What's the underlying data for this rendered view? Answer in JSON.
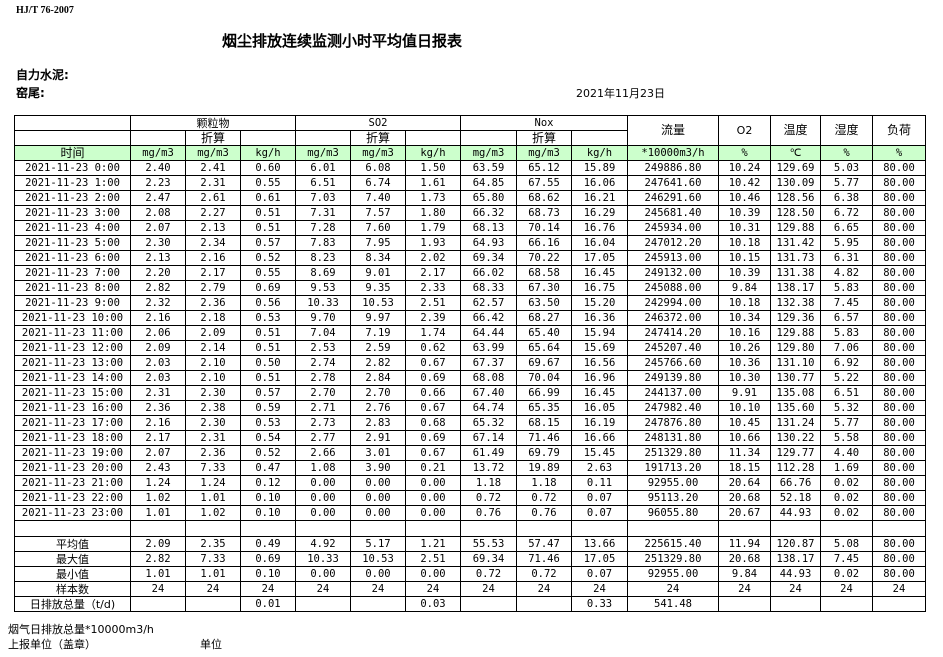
{
  "standard": "HJ/T  76-2007",
  "title": "烟尘排放连续监测小时平均值日报表",
  "company_label": "自力水泥:",
  "kiln_label": "窑尾:",
  "date": "2021年11月23日",
  "header": {
    "particulate": "颗粒物",
    "so2": "SO2",
    "nox": "Nox",
    "converted": "折算",
    "flow": "流量",
    "o2": "O2",
    "temperature": "温度",
    "humidity": "湿度",
    "load": "负荷",
    "time": "时间",
    "units": [
      "mg/m3",
      "mg/m3",
      "kg/h",
      "mg/m3",
      "mg/m3",
      "kg/h",
      "mg/m3",
      "mg/m3",
      "kg/h",
      "*10000m3/h",
      "%",
      "℃",
      "%",
      "%"
    ]
  },
  "rows": [
    [
      "2021-11-23 0:00",
      "2.40",
      "2.41",
      "0.60",
      "6.01",
      "6.08",
      "1.50",
      "63.59",
      "65.12",
      "15.89",
      "249886.80",
      "10.24",
      "129.69",
      "5.03",
      "80.00"
    ],
    [
      "2021-11-23 1:00",
      "2.23",
      "2.31",
      "0.55",
      "6.51",
      "6.74",
      "1.61",
      "64.85",
      "67.55",
      "16.06",
      "247641.60",
      "10.42",
      "130.09",
      "5.77",
      "80.00"
    ],
    [
      "2021-11-23 2:00",
      "2.47",
      "2.61",
      "0.61",
      "7.03",
      "7.40",
      "1.73",
      "65.80",
      "68.62",
      "16.21",
      "246291.60",
      "10.46",
      "128.56",
      "6.38",
      "80.00"
    ],
    [
      "2021-11-23 3:00",
      "2.08",
      "2.27",
      "0.51",
      "7.31",
      "7.57",
      "1.80",
      "66.32",
      "68.73",
      "16.29",
      "245681.40",
      "10.39",
      "128.50",
      "6.72",
      "80.00"
    ],
    [
      "2021-11-23 4:00",
      "2.07",
      "2.13",
      "0.51",
      "7.28",
      "7.60",
      "1.79",
      "68.13",
      "70.14",
      "16.76",
      "245934.00",
      "10.31",
      "129.88",
      "6.65",
      "80.00"
    ],
    [
      "2021-11-23 5:00",
      "2.30",
      "2.34",
      "0.57",
      "7.83",
      "7.95",
      "1.93",
      "64.93",
      "66.16",
      "16.04",
      "247012.20",
      "10.18",
      "131.42",
      "5.95",
      "80.00"
    ],
    [
      "2021-11-23 6:00",
      "2.13",
      "2.16",
      "0.52",
      "8.23",
      "8.34",
      "2.02",
      "69.34",
      "70.22",
      "17.05",
      "245913.00",
      "10.15",
      "131.73",
      "6.31",
      "80.00"
    ],
    [
      "2021-11-23 7:00",
      "2.20",
      "2.17",
      "0.55",
      "8.69",
      "9.01",
      "2.17",
      "66.02",
      "68.58",
      "16.45",
      "249132.00",
      "10.39",
      "131.38",
      "4.82",
      "80.00"
    ],
    [
      "2021-11-23 8:00",
      "2.82",
      "2.79",
      "0.69",
      "9.53",
      "9.35",
      "2.33",
      "68.33",
      "67.30",
      "16.75",
      "245088.00",
      "9.84",
      "138.17",
      "5.83",
      "80.00"
    ],
    [
      "2021-11-23 9:00",
      "2.32",
      "2.36",
      "0.56",
      "10.33",
      "10.53",
      "2.51",
      "62.57",
      "63.50",
      "15.20",
      "242994.00",
      "10.18",
      "132.38",
      "7.45",
      "80.00"
    ],
    [
      "2021-11-23 10:00",
      "2.16",
      "2.18",
      "0.53",
      "9.70",
      "9.97",
      "2.39",
      "66.42",
      "68.27",
      "16.36",
      "246372.00",
      "10.34",
      "129.36",
      "6.57",
      "80.00"
    ],
    [
      "2021-11-23 11:00",
      "2.06",
      "2.09",
      "0.51",
      "7.04",
      "7.19",
      "1.74",
      "64.44",
      "65.40",
      "15.94",
      "247414.20",
      "10.16",
      "129.88",
      "5.83",
      "80.00"
    ],
    [
      "2021-11-23 12:00",
      "2.09",
      "2.14",
      "0.51",
      "2.53",
      "2.59",
      "0.62",
      "63.99",
      "65.64",
      "15.69",
      "245207.40",
      "10.26",
      "129.80",
      "7.06",
      "80.00"
    ],
    [
      "2021-11-23 13:00",
      "2.03",
      "2.10",
      "0.50",
      "2.74",
      "2.82",
      "0.67",
      "67.37",
      "69.67",
      "16.56",
      "245766.60",
      "10.36",
      "131.10",
      "6.92",
      "80.00"
    ],
    [
      "2021-11-23 14:00",
      "2.03",
      "2.10",
      "0.51",
      "2.78",
      "2.84",
      "0.69",
      "68.08",
      "70.04",
      "16.96",
      "249139.80",
      "10.30",
      "130.77",
      "5.22",
      "80.00"
    ],
    [
      "2021-11-23 15:00",
      "2.31",
      "2.30",
      "0.57",
      "2.70",
      "2.70",
      "0.66",
      "67.40",
      "66.99",
      "16.45",
      "244137.00",
      "9.91",
      "135.08",
      "6.51",
      "80.00"
    ],
    [
      "2021-11-23 16:00",
      "2.36",
      "2.38",
      "0.59",
      "2.71",
      "2.76",
      "0.67",
      "64.74",
      "65.35",
      "16.05",
      "247982.40",
      "10.10",
      "135.60",
      "5.32",
      "80.00"
    ],
    [
      "2021-11-23 17:00",
      "2.16",
      "2.30",
      "0.53",
      "2.73",
      "2.83",
      "0.68",
      "65.32",
      "68.15",
      "16.19",
      "247876.80",
      "10.45",
      "131.24",
      "5.77",
      "80.00"
    ],
    [
      "2021-11-23 18:00",
      "2.17",
      "2.31",
      "0.54",
      "2.77",
      "2.91",
      "0.69",
      "67.14",
      "71.46",
      "16.66",
      "248131.80",
      "10.66",
      "130.22",
      "5.58",
      "80.00"
    ],
    [
      "2021-11-23 19:00",
      "2.07",
      "2.36",
      "0.52",
      "2.66",
      "3.01",
      "0.67",
      "61.49",
      "69.79",
      "15.45",
      "251329.80",
      "11.34",
      "129.77",
      "4.40",
      "80.00"
    ],
    [
      "2021-11-23 20:00",
      "2.43",
      "7.33",
      "0.47",
      "1.08",
      "3.90",
      "0.21",
      "13.72",
      "19.89",
      "2.63",
      "191713.20",
      "18.15",
      "112.28",
      "1.69",
      "80.00"
    ],
    [
      "2021-11-23 21:00",
      "1.24",
      "1.24",
      "0.12",
      "0.00",
      "0.00",
      "0.00",
      "1.18",
      "1.18",
      "0.11",
      "92955.00",
      "20.64",
      "66.76",
      "0.02",
      "80.00"
    ],
    [
      "2021-11-23 22:00",
      "1.02",
      "1.01",
      "0.10",
      "0.00",
      "0.00",
      "0.00",
      "0.72",
      "0.72",
      "0.07",
      "95113.20",
      "20.68",
      "52.18",
      "0.02",
      "80.00"
    ],
    [
      "2021-11-23 23:00",
      "1.01",
      "1.02",
      "0.10",
      "0.00",
      "0.00",
      "0.00",
      "0.76",
      "0.76",
      "0.07",
      "96055.80",
      "20.67",
      "44.93",
      "0.02",
      "80.00"
    ]
  ],
  "summary": [
    [
      "平均值",
      "2.09",
      "2.35",
      "0.49",
      "4.92",
      "5.17",
      "1.21",
      "55.53",
      "57.47",
      "13.66",
      "225615.40",
      "11.94",
      "120.87",
      "5.08",
      "80.00"
    ],
    [
      "最大值",
      "2.82",
      "7.33",
      "0.69",
      "10.33",
      "10.53",
      "2.51",
      "69.34",
      "71.46",
      "17.05",
      "251329.80",
      "20.68",
      "138.17",
      "7.45",
      "80.00"
    ],
    [
      "最小值",
      "1.01",
      "1.01",
      "0.10",
      "0.00",
      "0.00",
      "0.00",
      "0.72",
      "0.72",
      "0.07",
      "92955.00",
      "9.84",
      "44.93",
      "0.02",
      "80.00"
    ],
    [
      "样本数",
      "24",
      "24",
      "24",
      "24",
      "24",
      "24",
      "24",
      "24",
      "24",
      "24",
      "24",
      "24",
      "24",
      "24"
    ],
    [
      "日排放总量（t/d)",
      "",
      "",
      "0.01",
      "",
      "",
      "0.03",
      "",
      "",
      "0.33",
      "541.48",
      "",
      "",
      "",
      ""
    ]
  ],
  "footer": {
    "flue_gas_total": "烟气日排放总量*10000m3/h",
    "reporting_unit": "上报单位（盖章）",
    "unit": "单位"
  }
}
